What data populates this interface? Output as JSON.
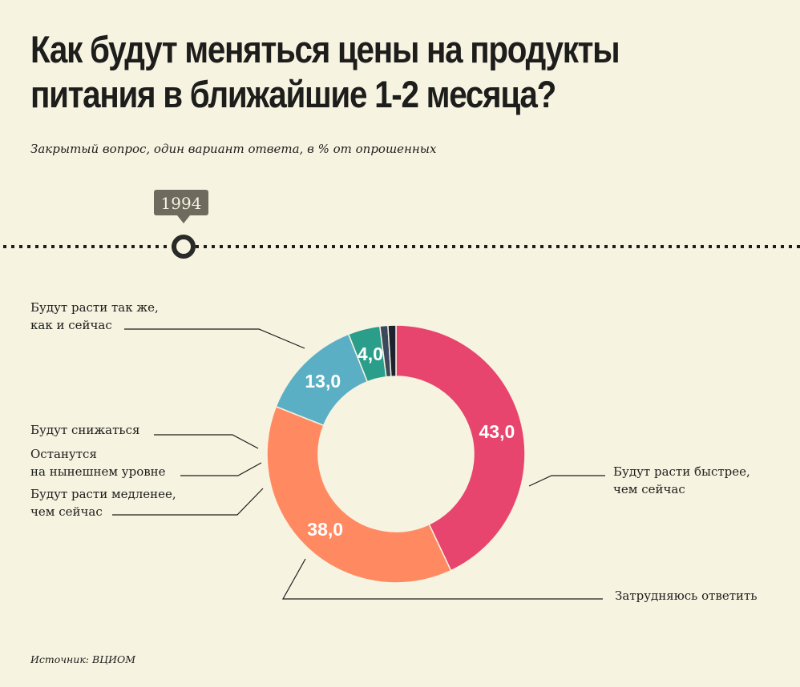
{
  "title_line1": "Как будут меняться цены на продукты",
  "title_line2": "питания в ближайшие 1-2 месяца?",
  "subtitle": "Закрытый вопрос, один вариант ответа, в % от опрошенных",
  "timeline": {
    "year": "1994"
  },
  "source": "Источник: ВЦИОМ",
  "chart_data": {
    "type": "pie",
    "hole": "donut",
    "slices": [
      {
        "label": "Будут расти так же,\nкак и сейчас",
        "value": 43.0,
        "value_label": "43,0",
        "color": "#e8456e"
      },
      {
        "label": "Будут расти быстрее,\nчем сейчас",
        "value": 38.0,
        "value_label": "38,0",
        "color": "#ff8a62"
      },
      {
        "label": "Затрудняюсь ответить",
        "value": 13.0,
        "value_label": "13,0",
        "color": "#5bafc4"
      },
      {
        "label": "Будут расти медленее,\nчем сейчас",
        "value": 4.0,
        "value_label": "4,0",
        "color": "#2a9e8a"
      },
      {
        "label": "Останутся\nна нынешнем уровне",
        "value": 1.0,
        "value_label": "",
        "color": "#3a4a5c"
      },
      {
        "label": "Будут снижаться",
        "value": 1.0,
        "value_label": "",
        "color": "#1d2230"
      }
    ]
  }
}
